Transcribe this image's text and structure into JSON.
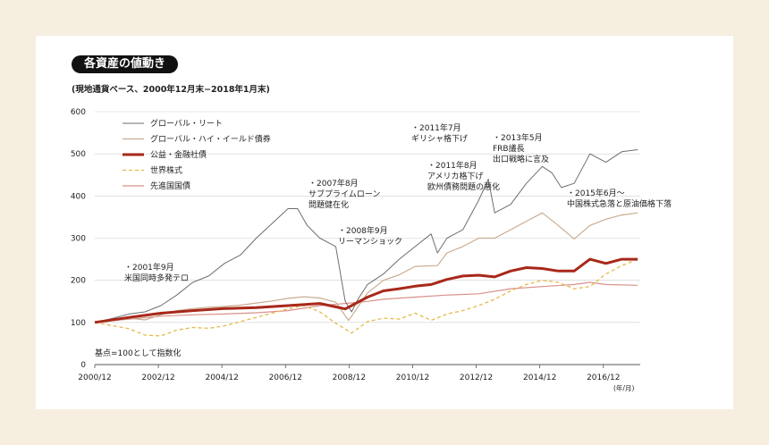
{
  "chart_data": {
    "type": "line",
    "title": "各資産の値動き",
    "subtitle": "(現地通貨ベース、2000年12月末−2018年1月末)",
    "base_note": "基点=100として指数化",
    "x_unit": "(年/月)",
    "ylim": [
      0,
      600
    ],
    "yticks": [
      0,
      100,
      200,
      300,
      400,
      500,
      600
    ],
    "xlim": [
      2000.92,
      2018.08
    ],
    "xticks": [
      {
        "label": "2000/12",
        "x": 2000.92
      },
      {
        "label": "2002/12",
        "x": 2002.92
      },
      {
        "label": "2004/12",
        "x": 2004.92
      },
      {
        "label": "2006/12",
        "x": 2006.92
      },
      {
        "label": "2008/12",
        "x": 2008.92
      },
      {
        "label": "2010/12",
        "x": 2010.92
      },
      {
        "label": "2012/12",
        "x": 2012.92
      },
      {
        "label": "2014/12",
        "x": 2014.92
      },
      {
        "label": "2016/12",
        "x": 2016.92
      }
    ],
    "grid": true,
    "legend_placement": "top-left",
    "series": [
      {
        "name": "グローバル・リート",
        "color": "#6e6e6e",
        "width": 1,
        "dash": "",
        "x": [
          2000.92,
          2001.5,
          2002.0,
          2002.5,
          2003.0,
          2003.5,
          2004.0,
          2004.5,
          2005.0,
          2005.5,
          2006.0,
          2006.5,
          2007.0,
          2007.3,
          2007.6,
          2008.0,
          2008.5,
          2008.8,
          2009.0,
          2009.2,
          2009.5,
          2010.0,
          2010.5,
          2011.0,
          2011.5,
          2011.7,
          2012.0,
          2012.5,
          2013.0,
          2013.3,
          2013.5,
          2014.0,
          2014.5,
          2015.0,
          2015.3,
          2015.6,
          2016.0,
          2016.5,
          2017.0,
          2017.5,
          2018.0
        ],
        "y": [
          100,
          110,
          120,
          125,
          140,
          165,
          195,
          210,
          240,
          260,
          300,
          335,
          370,
          370,
          330,
          300,
          280,
          150,
          125,
          155,
          190,
          215,
          250,
          280,
          310,
          265,
          300,
          320,
          390,
          440,
          360,
          380,
          430,
          470,
          455,
          420,
          430,
          500,
          480,
          505,
          510
        ]
      },
      {
        "name": "グローバル・ハイ・イールド債券",
        "color": "#c8ad92",
        "width": 1.2,
        "dash": "",
        "x": [
          2000.92,
          2001.5,
          2002.0,
          2002.5,
          2003.0,
          2003.5,
          2004.0,
          2004.5,
          2005.0,
          2005.5,
          2006.0,
          2006.5,
          2007.0,
          2007.5,
          2008.0,
          2008.5,
          2008.9,
          2009.0,
          2009.5,
          2010.0,
          2010.5,
          2011.0,
          2011.7,
          2012.0,
          2012.5,
          2013.0,
          2013.5,
          2014.0,
          2014.5,
          2015.0,
          2015.5,
          2016.0,
          2016.5,
          2017.0,
          2017.5,
          2018.0
        ],
        "y": [
          100,
          108,
          110,
          106,
          118,
          128,
          133,
          136,
          138,
          141,
          146,
          151,
          157,
          161,
          158,
          148,
          105,
          115,
          170,
          200,
          213,
          233,
          235,
          265,
          280,
          300,
          300,
          320,
          340,
          360,
          330,
          298,
          330,
          345,
          355,
          360
        ]
      },
      {
        "name": "公益・金融社債",
        "color": "#a8281a",
        "width": 3,
        "dash": "",
        "x": [
          2000.92,
          2002.0,
          2003.0,
          2004.0,
          2005.0,
          2006.0,
          2007.0,
          2008.0,
          2008.8,
          2009.0,
          2009.5,
          2010.0,
          2010.5,
          2011.0,
          2011.5,
          2012.0,
          2012.5,
          2013.0,
          2013.5,
          2014.0,
          2014.5,
          2015.0,
          2015.5,
          2016.0,
          2016.5,
          2017.0,
          2017.5,
          2018.0
        ],
        "y": [
          100,
          112,
          122,
          128,
          133,
          135,
          140,
          145,
          132,
          140,
          160,
          175,
          180,
          186,
          190,
          202,
          210,
          212,
          208,
          222,
          230,
          228,
          222,
          222,
          250,
          240,
          250,
          250
        ]
      },
      {
        "name": "世界株式",
        "color": "#e6b84a",
        "width": 1.3,
        "dash": "4,3",
        "x": [
          2000.92,
          2001.5,
          2002.0,
          2002.5,
          2003.0,
          2003.5,
          2004.0,
          2004.5,
          2005.0,
          2006.0,
          2007.0,
          2007.5,
          2008.0,
          2008.5,
          2009.0,
          2009.5,
          2010.0,
          2010.5,
          2011.0,
          2011.5,
          2012.0,
          2012.5,
          2013.0,
          2013.5,
          2014.0,
          2014.5,
          2015.0,
          2015.5,
          2016.0,
          2016.5,
          2017.0,
          2017.5,
          2018.0
        ],
        "y": [
          100,
          92,
          85,
          70,
          68,
          82,
          88,
          86,
          92,
          112,
          132,
          140,
          125,
          98,
          75,
          102,
          110,
          108,
          122,
          105,
          120,
          128,
          140,
          155,
          175,
          190,
          200,
          195,
          180,
          185,
          215,
          235,
          250
        ]
      },
      {
        "name": "先進国国債",
        "color": "#d9918a",
        "width": 1.2,
        "dash": "",
        "x": [
          2000.92,
          2002.0,
          2003.0,
          2004.0,
          2005.0,
          2006.0,
          2007.0,
          2008.0,
          2008.8,
          2009.5,
          2010.0,
          2011.0,
          2012.0,
          2013.0,
          2014.0,
          2015.0,
          2016.0,
          2016.5,
          2017.0,
          2018.0
        ],
        "y": [
          100,
          108,
          115,
          118,
          120,
          123,
          128,
          140,
          145,
          150,
          155,
          160,
          165,
          168,
          180,
          185,
          190,
          195,
          190,
          188
        ]
      }
    ],
    "annotations": [
      {
        "lines": [
          "・2001年9月",
          "米国同時多発テロ"
        ]
      },
      {
        "lines": [
          "・2007年8月",
          "サブプライムローン",
          "問題健在化"
        ]
      },
      {
        "lines": [
          "・2008年9月",
          "リーマンショック"
        ]
      },
      {
        "lines": [
          "・2011年7月",
          "ギリシャ格下げ"
        ]
      },
      {
        "lines": [
          "・2011年8月",
          "アメリカ格下げ",
          "欧州債務問題の悪化"
        ]
      },
      {
        "lines": [
          "・2013年5月",
          "FRB議長",
          "出口戦略に言及"
        ]
      },
      {
        "lines": [
          "・2015年6月～",
          "中国株式急落と原油価格下落"
        ]
      }
    ]
  }
}
